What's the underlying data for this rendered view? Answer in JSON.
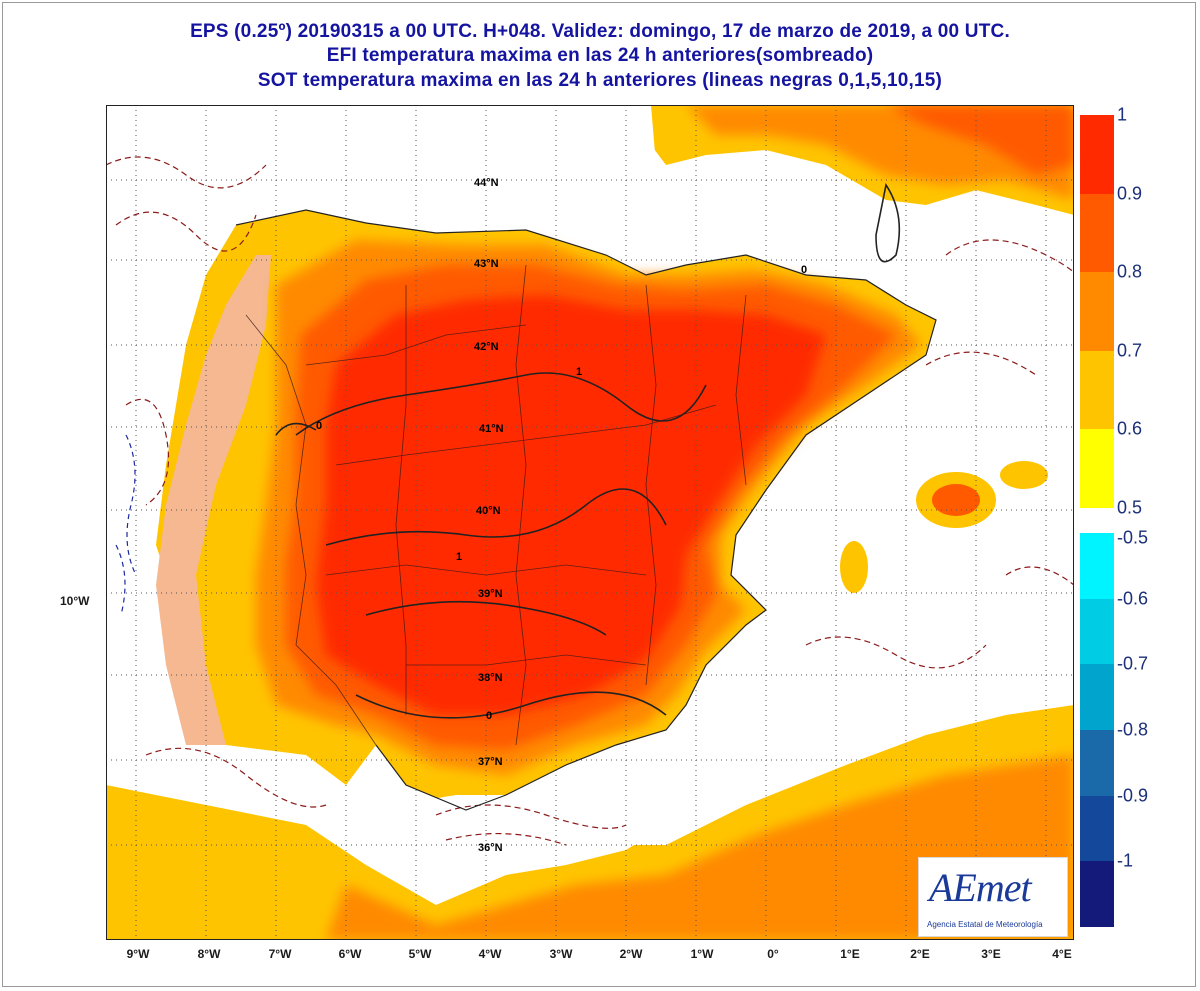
{
  "titles": {
    "line1": "EPS (0.25º) 20190315 a 00 UTC.  H+048. Validez: domingo, 17 de marzo de 2019,  a  00 UTC.",
    "line2": "EFI temperatura maxima en las 24 h anteriores(sombreado)",
    "line3": "SOT temperatura maxima en las 24 h anteriores (lineas negras 0,1,5,10,15)"
  },
  "map": {
    "lat_labels": [
      "44°N",
      "43°N",
      "42°N",
      "41°N",
      "40°N",
      "39°N",
      "38°N",
      "37°N",
      "36°N"
    ],
    "lon_labels": [
      "9°W",
      "8°W",
      "7°W",
      "6°W",
      "5°W",
      "4°W",
      "3°W",
      "2°W",
      "1°W",
      "0°",
      "1°E",
      "2°E",
      "3°E",
      "4°E"
    ],
    "lon_side_label": "10°W",
    "contour_labels": [
      "0",
      "1"
    ]
  },
  "legend": {
    "positive": [
      "1",
      "0.9",
      "0.8",
      "0.7",
      "0.6",
      "0.5"
    ],
    "negative": [
      "-0.5",
      "-0.6",
      "-0.7",
      "-0.8",
      "-0.9",
      "-1"
    ],
    "positive_colors": [
      "#ff2a00",
      "#ff5a00",
      "#ff8a00",
      "#ffc400",
      "#ffff00"
    ],
    "negative_colors": [
      "#00f4ff",
      "#00cce4",
      "#00a4cc",
      "#1a6aaa",
      "#14489a",
      "#141a7a"
    ]
  },
  "logo": {
    "word": "AEmet",
    "subtitle": "Agencia Estatal de Meteorología"
  }
}
